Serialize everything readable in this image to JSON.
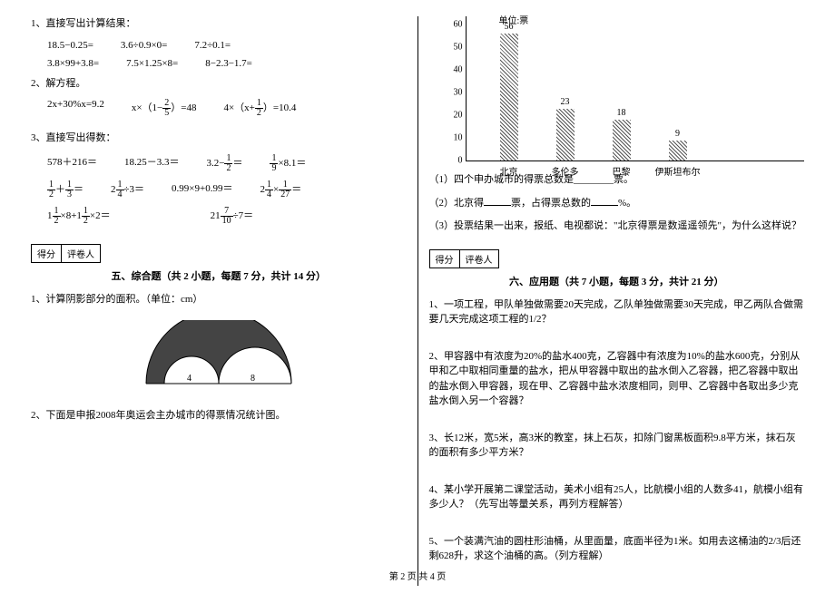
{
  "left": {
    "q1": {
      "title": "1、直接写出计算结果：",
      "rows": [
        [
          "18.5−0.25=",
          "3.6÷0.9×0=",
          "7.2÷0.1="
        ],
        [
          "3.8×99+3.8=",
          "7.5×1.25×8=",
          "8−2.3−1.7="
        ]
      ]
    },
    "q2": {
      "title": "2、解方程。",
      "row": [
        "2x+30%x=9.2",
        "x×（1−",
        "）=48",
        "4×（x+",
        "）=10.4"
      ],
      "f1": {
        "n": "2",
        "d": "5"
      },
      "f2": {
        "n": "1",
        "d": "2"
      }
    },
    "q3": {
      "title": "3、直接写出得数：",
      "row1": [
        "578＋216＝",
        "18.25－3.3＝",
        "3.2−",
        "＝",
        "",
        "×8.1＝"
      ],
      "f1a": {
        "n": "1",
        "d": "2"
      },
      "f1b": {
        "n": "1",
        "d": "9"
      },
      "row2_f1": {
        "n": "1",
        "d": "2"
      },
      "row2_f2": {
        "n": "1",
        "d": "3"
      },
      "row2_p2a": "2",
      "row2_f3": {
        "n": "1",
        "d": "4"
      },
      "row2_p3": "0.99×9+0.99＝",
      "row2_p4a": "2",
      "row2_f4": {
        "n": "1",
        "d": "4"
      },
      "row2_f5": {
        "n": "1",
        "d": "27"
      },
      "row3_p1a": "1",
      "row3_f1": {
        "n": "1",
        "d": "2"
      },
      "row3_p1b": "×8+1",
      "row3_f2": {
        "n": "1",
        "d": "2"
      },
      "row3_p1c": "×2＝",
      "row3_p2a": "21",
      "row3_f3": {
        "n": "7",
        "d": "10"
      },
      "row3_p2b": "÷7＝"
    },
    "score": {
      "a": "得分",
      "b": "评卷人"
    },
    "section5": "五、综合题（共 2 小题，每题 7 分，共计 14 分）",
    "q5_1": "1、计算阴影部分的面积。（单位：cm）",
    "shape": {
      "a": "4",
      "b": "8"
    },
    "q5_2": "2、下面是申报2008年奥运会主办城市的得票情况统计图。"
  },
  "right": {
    "chart": {
      "y_title": "单位:票",
      "y_ticks": [
        60,
        50,
        40,
        30,
        20,
        10,
        0
      ],
      "bars": [
        {
          "v": 56,
          "label": "北京"
        },
        {
          "v": 23,
          "label": "多伦多"
        },
        {
          "v": 18,
          "label": "巴黎"
        },
        {
          "v": 9,
          "label": "伊斯坦布尔"
        }
      ],
      "max": 60,
      "height": 150
    },
    "sub1": "（1）四个申办城市的得票总数是________票。",
    "sub2a": "（2）北京得",
    "sub2b": "票，占得票总数的",
    "sub2c": "%。",
    "sub3": "（3）投票结果一出来，报纸、电视都说：\"北京得票是数遥遥领先\"，为什么这样说？",
    "score": {
      "a": "得分",
      "b": "评卷人"
    },
    "section6": "六、应用题（共 7 小题，每题 3 分，共计 21 分）",
    "q1": "1、一项工程，甲队单独做需要20天完成，乙队单独做需要30天完成，甲乙两队合做需要几天完成这项工程的1/2？",
    "q2": "2、甲容器中有浓度为20%的盐水400克，乙容器中有浓度为10%的盐水600克，分别从甲和乙中取相同重量的盐水，把从甲容器中取出的盐水倒入乙容器，把乙容器中取出的盐水倒入甲容器，现在甲、乙容器中盐水浓度相同，则甲、乙容器中各取出多少克盐水倒入另一个容器？",
    "q3": "3、长12米，宽5米，高3米的教室，抹上石灰，扣除门窗黑板面积9.8平方米，抹石灰的面积有多少平方米？",
    "q4": "4、某小学开展第二课堂活动，美术小组有25人，比航模小组的人数多41，航模小组有多少人？（先写出等量关系，再列方程解答）",
    "q5": "5、一个装满汽油的圆柱形油桶，从里面量，底面半径为1米。如用去这桶油的2/3后还剩628升，求这个油桶的高。（列方程解）"
  },
  "footer": "第 2 页 共 4 页"
}
